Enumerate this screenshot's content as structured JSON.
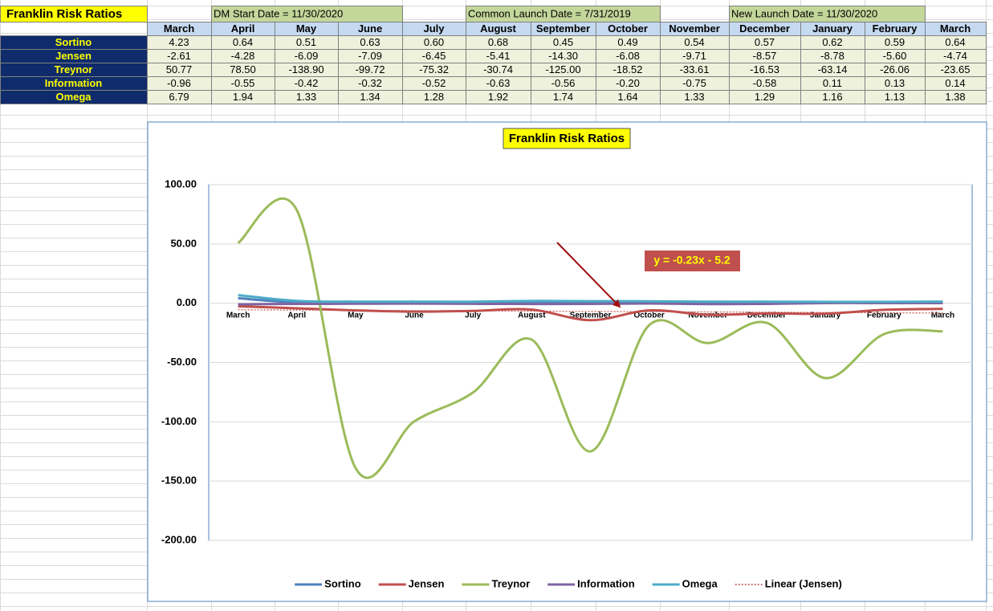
{
  "table": {
    "title": "Franklin Risk Ratios",
    "notes": [
      "DM Start Date = 11/30/2020",
      "Common Launch Date = 7/31/2019",
      "New Launch Date = 11/30/2020"
    ],
    "columns": [
      "March",
      "April",
      "May",
      "June",
      "July",
      "August",
      "September",
      "October",
      "November",
      "December",
      "January",
      "February",
      "March"
    ],
    "rows": [
      {
        "label": "Sortino",
        "cells": [
          "4.23",
          "0.64",
          "0.51",
          "0.63",
          "0.60",
          "0.68",
          "0.45",
          "0.49",
          "0.54",
          "0.57",
          "0.62",
          "0.59",
          "0.64"
        ]
      },
      {
        "label": "Jensen",
        "cells": [
          "-2.61",
          "-4.28",
          "-6.09",
          "-7.09",
          "-6.45",
          "-5.41",
          "-14.30",
          "-6.08",
          "-9.71",
          "-8.57",
          "-8.78",
          "-5.60",
          "-4.74"
        ]
      },
      {
        "label": "Treynor",
        "cells": [
          "50.77",
          "78.50",
          "-138.90",
          "-99.72",
          "-75.32",
          "-30.74",
          "-125.00",
          "-18.52",
          "-33.61",
          "-16.53",
          "-63.14",
          "-26.06",
          "-23.65"
        ]
      },
      {
        "label": "Information",
        "cells": [
          "-0.96",
          "-0.55",
          "-0.42",
          "-0.32",
          "-0.52",
          "-0.63",
          "-0.56",
          "-0.20",
          "-0.75",
          "-0.58",
          "0.11",
          "0.13",
          "0.14"
        ]
      },
      {
        "label": "Omega",
        "cells": [
          "6.79",
          "1.94",
          "1.33",
          "1.34",
          "1.28",
          "1.92",
          "1.74",
          "1.64",
          "1.33",
          "1.29",
          "1.16",
          "1.13",
          "1.38"
        ]
      }
    ]
  },
  "chart_data": {
    "type": "line",
    "smooth": true,
    "title": "Franklin Risk Ratios",
    "categories": [
      "March",
      "April",
      "May",
      "June",
      "July",
      "August",
      "September",
      "October",
      "November",
      "December",
      "January",
      "February",
      "March"
    ],
    "ylim": [
      -200,
      100
    ],
    "yticks": [
      {
        "value": -200,
        "label": "-200.00"
      },
      {
        "value": -150,
        "label": "-150.00"
      },
      {
        "value": -100,
        "label": "-100.00"
      },
      {
        "value": -50,
        "label": "-50.00"
      },
      {
        "value": 0,
        "label": "0.00"
      },
      {
        "value": 50,
        "label": "50.00"
      },
      {
        "value": 100,
        "label": "100.00"
      }
    ],
    "grid": true,
    "series": [
      {
        "name": "Sortino",
        "color": "#4f81bd",
        "values": [
          4.23,
          0.64,
          0.51,
          0.63,
          0.6,
          0.68,
          0.45,
          0.49,
          0.54,
          0.57,
          0.62,
          0.59,
          0.64
        ]
      },
      {
        "name": "Jensen",
        "color": "#c0504d",
        "values": [
          -2.61,
          -4.28,
          -6.09,
          -7.09,
          -6.45,
          -5.41,
          -14.3,
          -6.08,
          -9.71,
          -8.57,
          -8.78,
          -5.6,
          -4.74
        ],
        "trendline": {
          "name": "Linear (Jensen)",
          "label": "y = -0.23x - 5.2"
        }
      },
      {
        "name": "Treynor",
        "color": "#9bbb59",
        "values": [
          50.77,
          78.5,
          -138.9,
          -99.72,
          -75.32,
          -30.74,
          -125.0,
          -18.52,
          -33.61,
          -16.53,
          -63.14,
          -26.06,
          -23.65
        ]
      },
      {
        "name": "Information",
        "color": "#8064a2",
        "values": [
          -0.96,
          -0.55,
          -0.42,
          -0.32,
          -0.52,
          -0.63,
          -0.56,
          -0.2,
          -0.75,
          -0.58,
          0.11,
          0.13,
          0.14
        ]
      },
      {
        "name": "Omega",
        "color": "#4bacc6",
        "values": [
          6.79,
          1.94,
          1.33,
          1.34,
          1.28,
          1.92,
          1.74,
          1.64,
          1.33,
          1.29,
          1.16,
          1.13,
          1.38
        ]
      }
    ]
  }
}
